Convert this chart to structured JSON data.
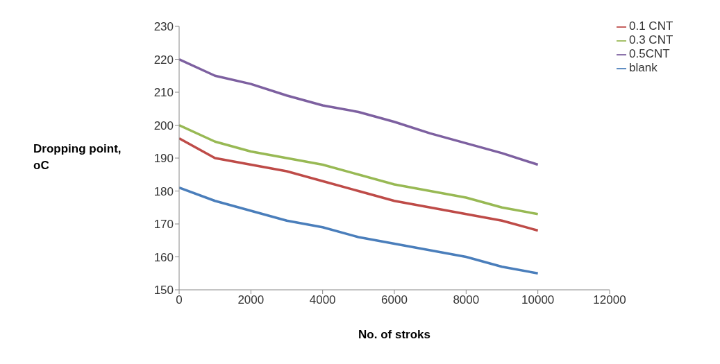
{
  "chart_data": {
    "type": "line",
    "xlabel": "No. of stroks",
    "ylabel": "Dropping point, oC",
    "x": [
      0,
      1000,
      2000,
      3000,
      4000,
      5000,
      6000,
      7000,
      8000,
      9000,
      10000
    ],
    "series": [
      {
        "name": "blank",
        "color": "#4a7ebb",
        "values": [
          181,
          177,
          174,
          171,
          169,
          166,
          164,
          162,
          160,
          157,
          155
        ]
      },
      {
        "name": "0.1 CNT",
        "color": "#be4b48",
        "values": [
          196,
          190,
          188,
          186,
          183,
          180,
          177,
          175,
          173,
          171,
          168
        ]
      },
      {
        "name": "0.3 CNT",
        "color": "#98b954",
        "values": [
          200,
          195,
          192,
          190,
          188,
          185,
          182,
          180,
          178,
          175,
          173
        ]
      },
      {
        "name": "0.5CNT",
        "color": "#7d60a0",
        "values": [
          220,
          215,
          212.5,
          209,
          206,
          204,
          201,
          197.5,
          194.5,
          191.5,
          188
        ]
      }
    ],
    "xlim": [
      0,
      12000
    ],
    "xticks": [
      0,
      2000,
      4000,
      6000,
      8000,
      10000,
      12000
    ],
    "ylim": [
      150,
      230
    ],
    "yticks": [
      150,
      160,
      170,
      180,
      190,
      200,
      210,
      220,
      230
    ],
    "grid": false,
    "legend": "top right",
    "marker": "none",
    "line_style": "solid"
  }
}
